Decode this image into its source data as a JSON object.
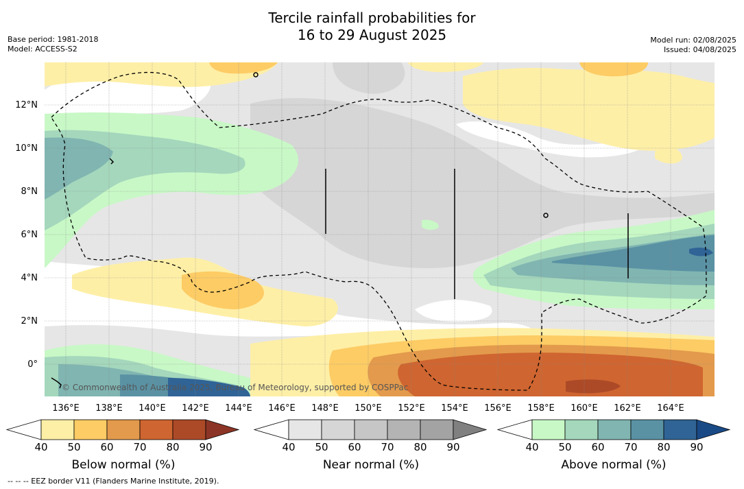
{
  "title_line1": "Tercile rainfall probabilities for",
  "title_line2": "16 to 29 August 2025",
  "base_period": "Base period: 1981-2018",
  "model": "Model: ACCESS-S2",
  "model_run": "Model run: 02/08/2025",
  "issued": "Issued: 04/08/2025",
  "lat_labels": [
    "12°N",
    "10°N",
    "8°N",
    "6°N",
    "4°N",
    "2°N",
    "0°"
  ],
  "lon_labels": [
    "136°E",
    "138°E",
    "140°E",
    "142°E",
    "144°E",
    "146°E",
    "148°E",
    "150°E",
    "152°E",
    "154°E",
    "156°E",
    "158°E",
    "160°E",
    "162°E",
    "164°E"
  ],
  "copyright": "© Commonwealth of Australia 2025, Bureau of Meteorology, supported by COSPPac",
  "colorbars": [
    {
      "label": "Below normal (%)",
      "ticks": [
        "40",
        "50",
        "60",
        "70",
        "80",
        "90"
      ],
      "colors": [
        "#ffffff",
        "#feefa7",
        "#fdcc65",
        "#e39a4c",
        "#cf6530",
        "#ac4a28",
        "#8c3526"
      ]
    },
    {
      "label": "Near normal (%)",
      "ticks": [
        "40",
        "50",
        "60",
        "70",
        "80",
        "90"
      ],
      "colors": [
        "#ffffff",
        "#e6e6e6",
        "#d6d6d6",
        "#c6c6c6",
        "#b4b4b4",
        "#a3a3a3",
        "#808080"
      ]
    },
    {
      "label": "Above normal (%)",
      "ticks": [
        "40",
        "50",
        "60",
        "70",
        "80",
        "90"
      ],
      "colors": [
        "#ffffff",
        "#c8f8c6",
        "#a4d7bc",
        "#80b5b1",
        "#5a92a4",
        "#306496",
        "#1a4a86"
      ]
    }
  ],
  "footer": "-- -- -- EEZ border V11 (Flanders Marine Institute, 2019).",
  "colors": {
    "below_50": "#feefa7",
    "below_60": "#fdcc65",
    "below_70": "#e39a4c",
    "below_80": "#cf6530",
    "near_50": "#e6e6e6",
    "near_60": "#d6d6d6",
    "above_50": "#c8f8c6",
    "above_60": "#a4d7bc",
    "above_70": "#80b5b1",
    "above_80": "#5a92a4",
    "above_90": "#306496"
  }
}
